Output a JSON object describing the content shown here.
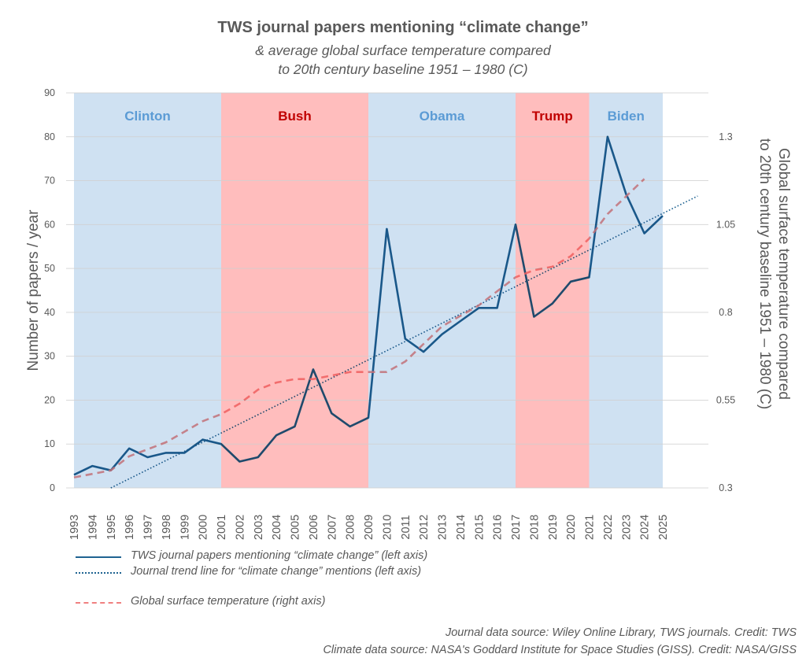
{
  "chart_data": {
    "type": "line",
    "title": "TWS journal papers mentioning “climate change”",
    "subtitle_lines": [
      "& average global surface temperature compared",
      "to 20th century baseline 1951 – 1980 (C)"
    ],
    "ylabel": "Number of papers / year",
    "ylabel_right": "Global surface temperature compared to 20th century baseline 1951 – 1980 (C)",
    "ylabel_right_lines": [
      "Global surface temperature compared",
      "to 20th century baseline 1951 – 1980 (C)"
    ],
    "ylim": [
      0,
      90
    ],
    "yticks": [
      0,
      10,
      20,
      30,
      40,
      50,
      60,
      70,
      80,
      90
    ],
    "ylim_right": [
      0.3,
      1.425
    ],
    "yticks_right": [
      "0.3",
      "0.55",
      "0.8",
      "1.05",
      "1.3"
    ],
    "yticks_right_values": [
      0.3,
      0.55,
      0.8,
      1.05,
      1.3
    ],
    "x": [
      1993,
      1994,
      1995,
      1996,
      1997,
      1998,
      1999,
      2000,
      2001,
      2002,
      2003,
      2004,
      2005,
      2006,
      2007,
      2008,
      2009,
      2010,
      2011,
      2012,
      2013,
      2014,
      2015,
      2016,
      2017,
      2018,
      2019,
      2020,
      2021,
      2022,
      2023,
      2024,
      2025
    ],
    "grid": true,
    "series": [
      {
        "name": "TWS journal papers mentioning “climate change” (left axis)",
        "axis": "left",
        "style": "solid",
        "color": "#1F6391",
        "values": [
          3,
          5,
          4,
          9,
          7,
          8,
          8,
          11,
          10,
          6,
          7,
          12,
          14,
          27,
          17,
          14,
          16,
          59,
          34,
          31,
          35,
          38,
          41,
          41,
          60,
          39,
          42,
          47,
          48,
          80,
          67,
          58,
          62
        ]
      },
      {
        "name": "Journal trend line for “climate change” mentions (left axis)",
        "axis": "left",
        "style": "dotted",
        "color": "#1F6391",
        "x": [
          1995,
          2026.9
        ],
        "values": [
          0,
          66.5
        ]
      },
      {
        "name": "Global surface temperature (right axis)",
        "axis": "right",
        "style": "dashed",
        "color": "#F08080",
        "x": [
          1993,
          1994,
          1995,
          1996,
          1997,
          1998,
          1999,
          2000,
          2001,
          2002,
          2003,
          2004,
          2005,
          2006,
          2007,
          2008,
          2009,
          2010,
          2011,
          2012,
          2013,
          2014,
          2015,
          2016,
          2017,
          2018,
          2019,
          2020,
          2021,
          2022,
          2023,
          2024
        ],
        "values": [
          0.33,
          0.34,
          0.35,
          0.39,
          0.41,
          0.43,
          0.46,
          0.49,
          0.51,
          0.54,
          0.58,
          0.6,
          0.61,
          0.61,
          0.62,
          0.63,
          0.63,
          0.63,
          0.66,
          0.71,
          0.76,
          0.79,
          0.82,
          0.86,
          0.9,
          0.92,
          0.93,
          0.96,
          1.01,
          1.08,
          1.13,
          1.18
        ]
      }
    ],
    "eras": [
      {
        "label": "Clinton",
        "start": 1993,
        "end": 2001,
        "party": "D"
      },
      {
        "label": "Bush",
        "start": 2001,
        "end": 2009,
        "party": "R"
      },
      {
        "label": "Obama",
        "start": 2009,
        "end": 2017,
        "party": "D"
      },
      {
        "label": "Trump",
        "start": 2017,
        "end": 2021,
        "party": "R"
      },
      {
        "label": "Biden",
        "start": 2021,
        "end": 2025,
        "party": "D"
      }
    ],
    "era_colors": {
      "D_fill": "#CFE1F2",
      "D_text": "#5B9BD5",
      "R_fill": "#FFBDBD",
      "R_text": "#C00000"
    },
    "legend": {
      "placement": "bottom-left",
      "entries": [
        "TWS journal papers mentioning “climate change” (left axis)",
        "Journal trend line for “climate change” mentions (left axis)",
        "Global surface temperature (right axis)"
      ]
    },
    "annotations": [
      "Journal data source: Wiley Online Library, TWS journals. Credit: TWS",
      "Climate data source: NASA's Goddard Institute for Space Studies (GISS). Credit: NASA/GISS"
    ]
  }
}
